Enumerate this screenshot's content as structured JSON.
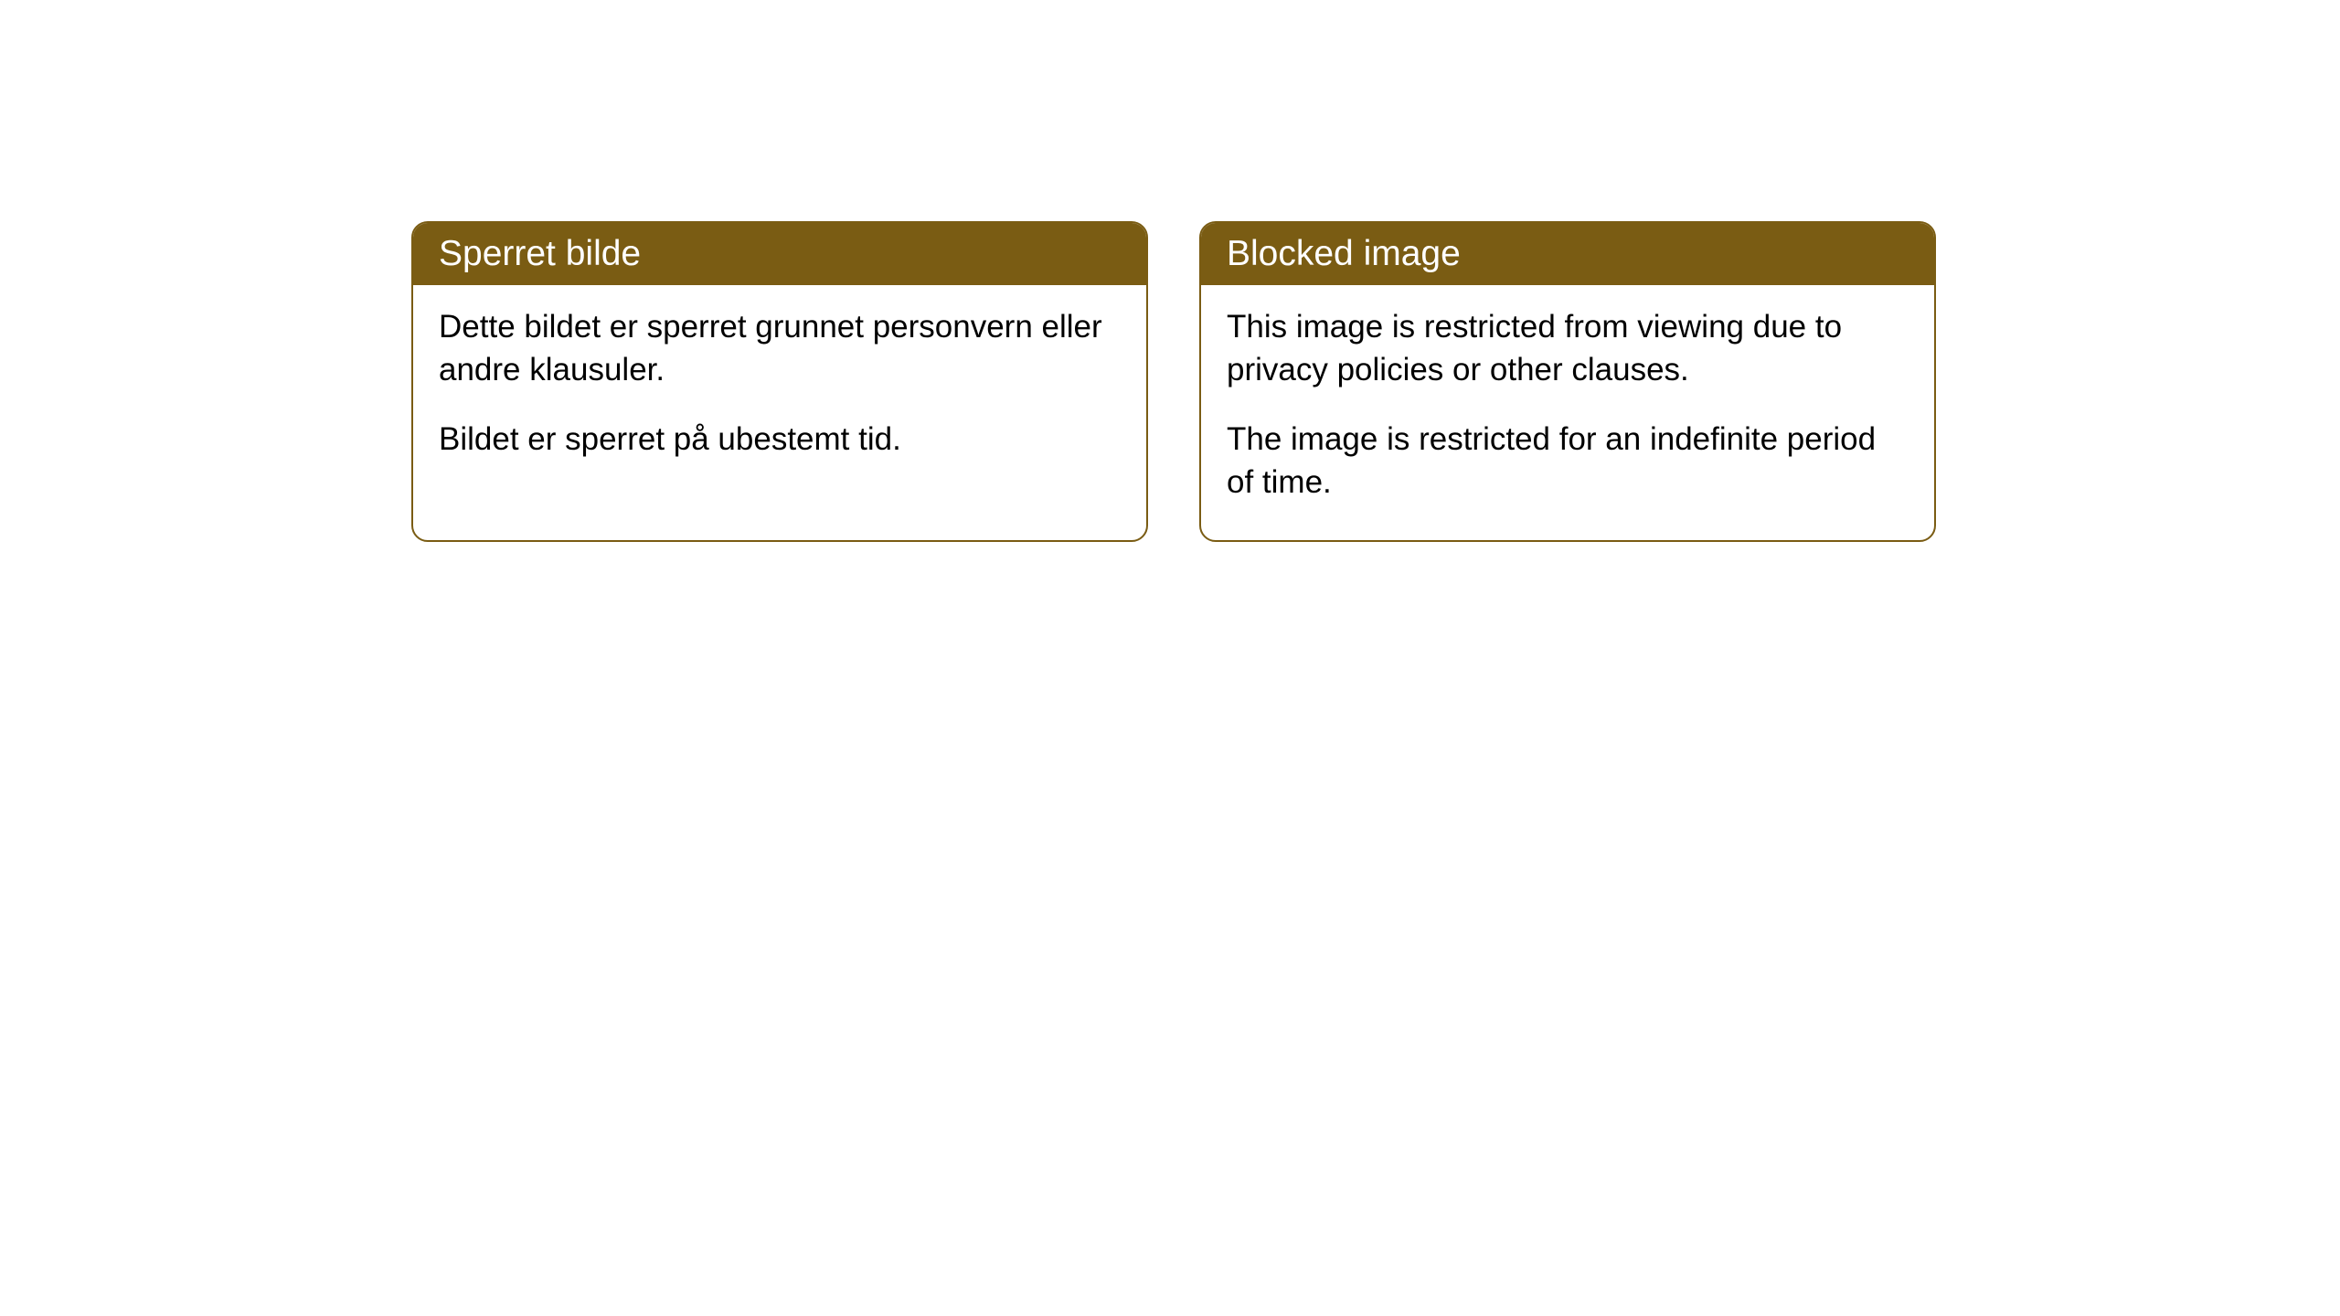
{
  "cards": [
    {
      "title": "Sperret bilde",
      "paragraph1": "Dette bildet er sperret grunnet personvern eller andre klausuler.",
      "paragraph2": "Bildet er sperret på ubestemt tid."
    },
    {
      "title": "Blocked image",
      "paragraph1": "This image is restricted from viewing due to privacy policies or other clauses.",
      "paragraph2": "The image is restricted for an indefinite period of time."
    }
  ],
  "style": {
    "header_bg_color": "#7a5c13",
    "header_text_color": "#ffffff",
    "border_color": "#7a5c13",
    "body_bg_color": "#ffffff",
    "body_text_color": "#000000",
    "border_radius": 18,
    "title_fontsize": 39,
    "body_fontsize": 35
  }
}
